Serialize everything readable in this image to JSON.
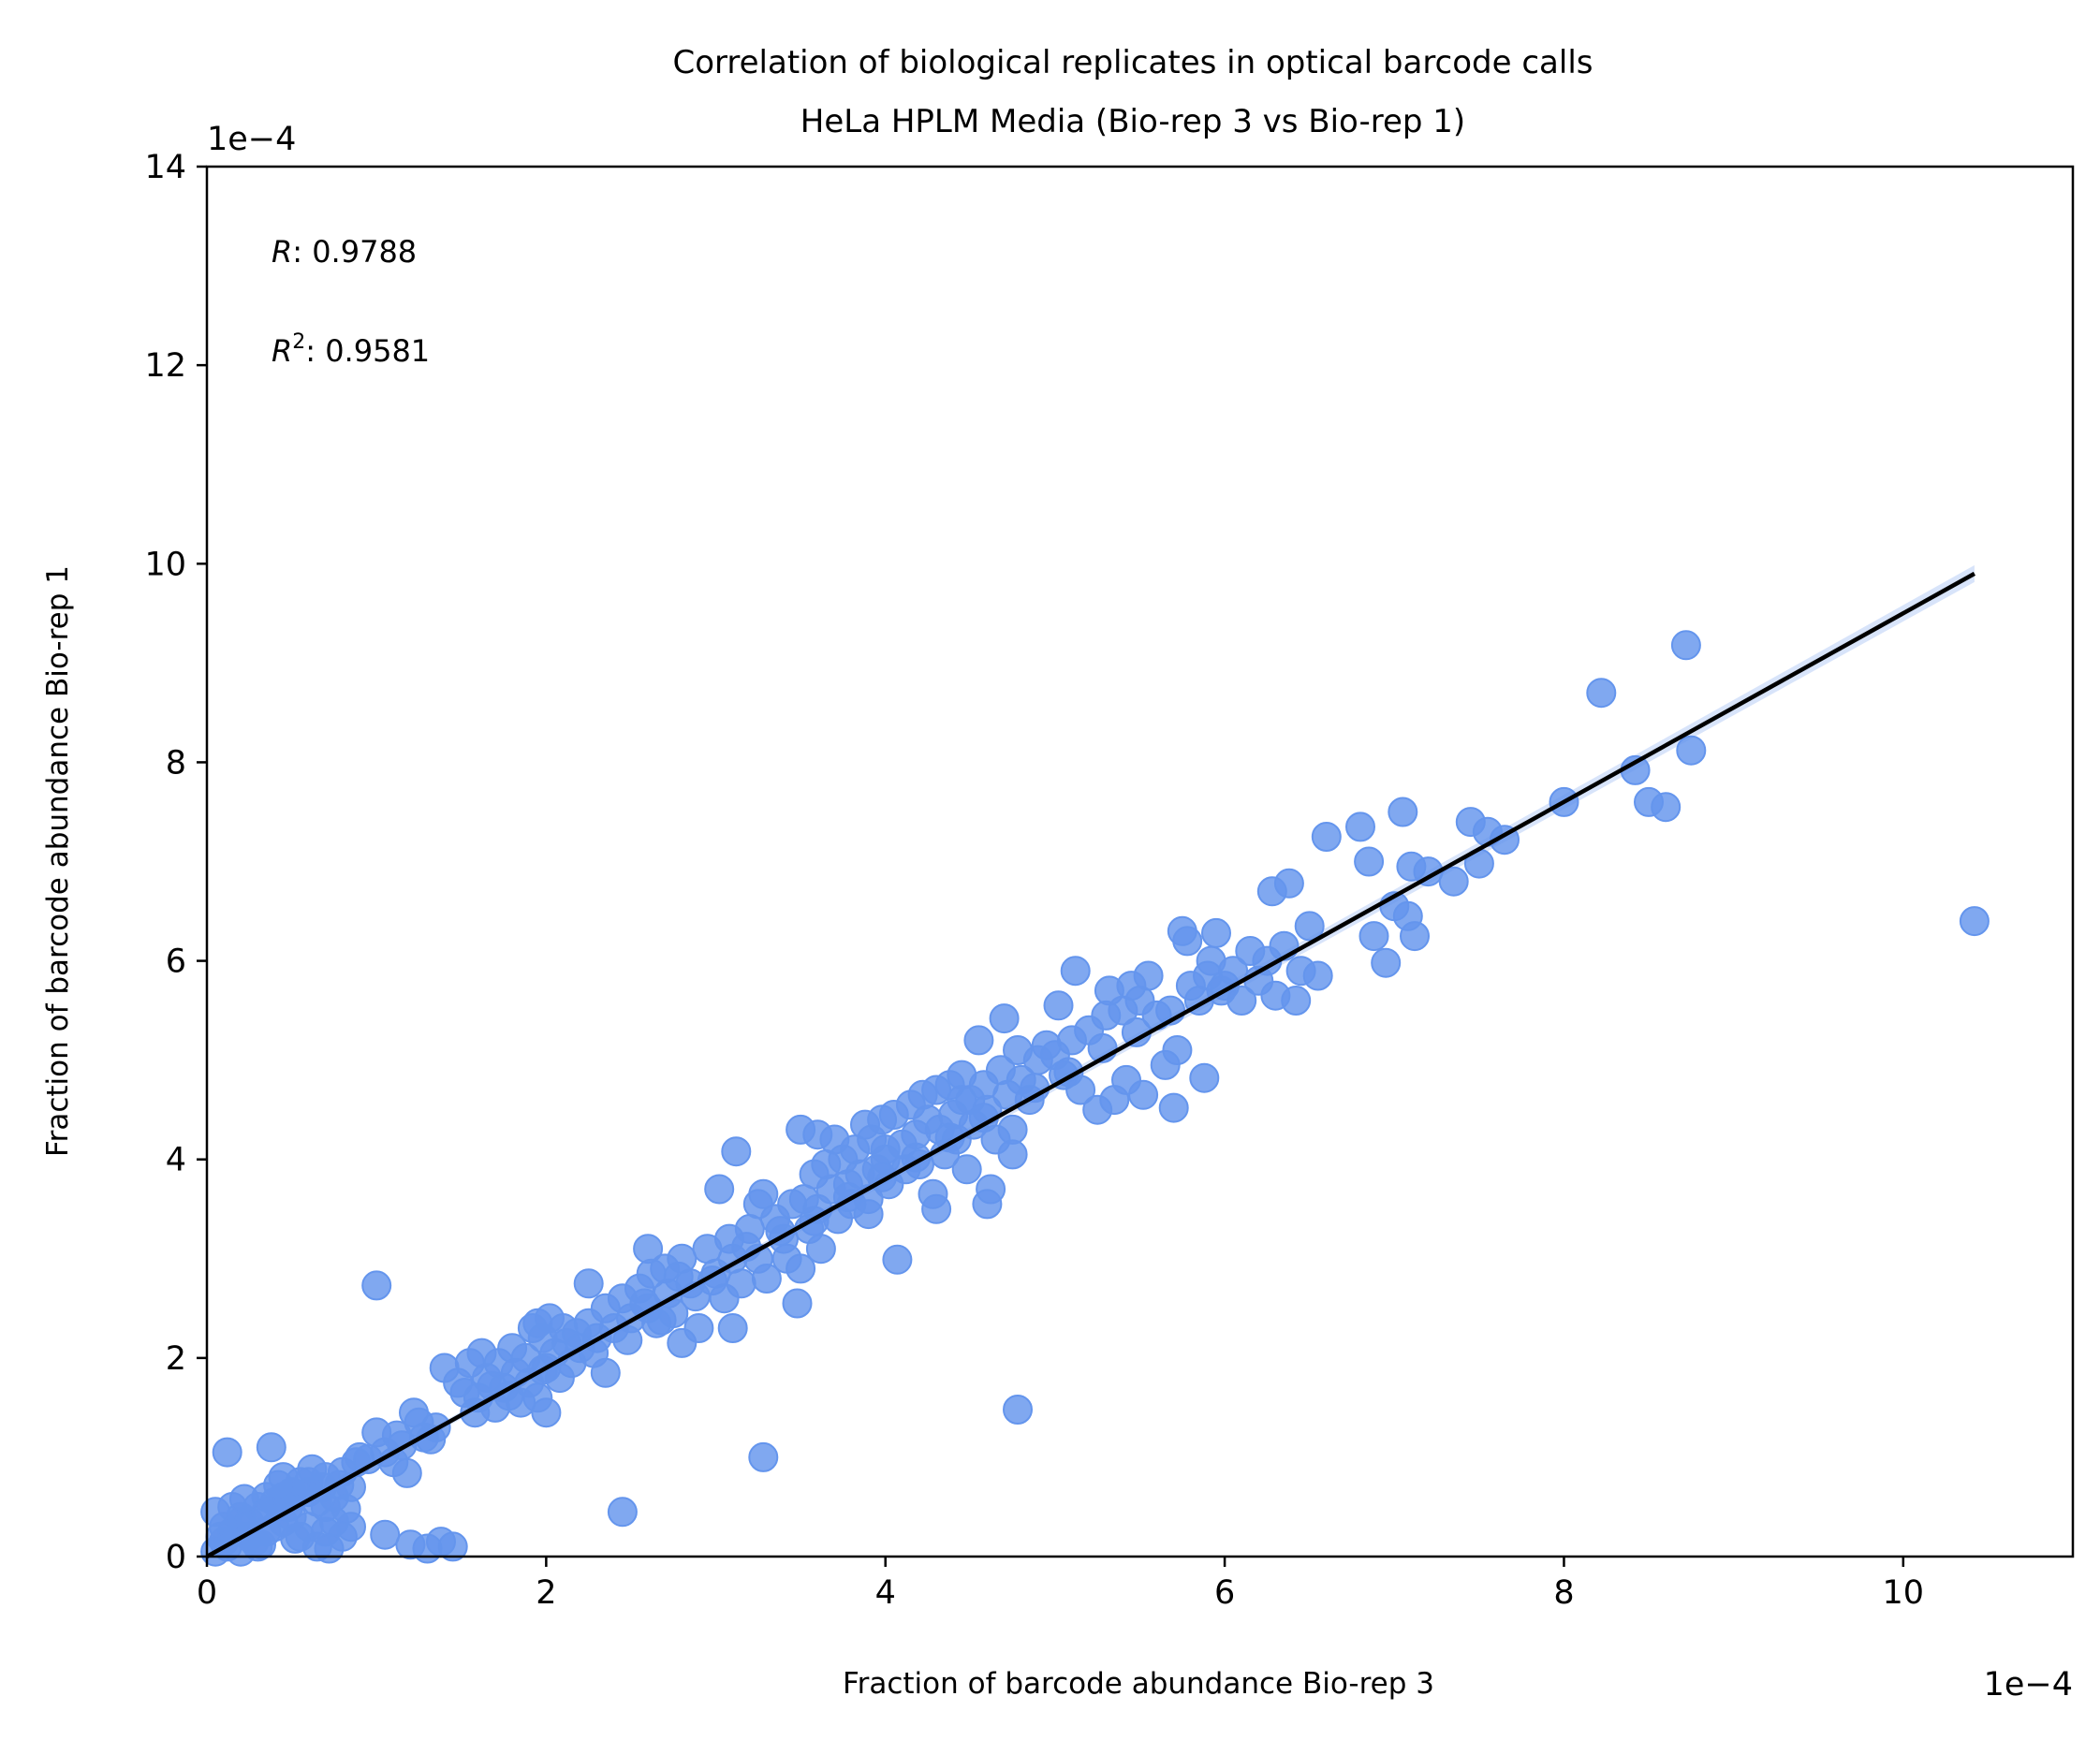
{
  "chart_data": {
    "type": "scatter",
    "title": "Correlation of biological replicates in optical barcode calls",
    "subtitle": "HeLa HPLM Media (Bio-rep 3 vs Bio-rep 1)",
    "xlabel": "Fraction of barcode abundance Bio-rep 3",
    "ylabel": "Fraction of barcode abundance Bio-rep 1",
    "x_exponent_label": "1e−4",
    "y_exponent_label": "1e−4",
    "xlim": [
      0,
      11
    ],
    "ylim": [
      0,
      14
    ],
    "x_ticks": [
      0,
      2,
      4,
      6,
      8,
      10
    ],
    "x_tick_labels": [
      "0",
      "2",
      "4",
      "6",
      "8",
      "10"
    ],
    "y_ticks": [
      0,
      2,
      4,
      6,
      8,
      10,
      12,
      14
    ],
    "y_tick_labels": [
      "0",
      "2",
      "4",
      "6",
      "8",
      "10",
      "12",
      "14"
    ],
    "grid": false,
    "point_color": "#6495ED",
    "line_color": "#000000",
    "annotations": [
      {
        "label": "R",
        "text": ": 0.9788",
        "superscript": ""
      },
      {
        "label": "R",
        "text": ": 0.9581",
        "superscript": "2"
      }
    ],
    "regression_line": {
      "x": [
        0.0,
        10.42
      ],
      "y": [
        0.0,
        9.9
      ]
    },
    "series": [
      {
        "points": [
          [
            0.12,
            1.05
          ],
          [
            0.38,
            1.1
          ],
          [
            1.0,
            2.73
          ],
          [
            1.22,
            1.45
          ],
          [
            1.18,
            0.84
          ],
          [
            1.0,
            1.25
          ],
          [
            0.05,
            0.45
          ],
          [
            0.15,
            0.5
          ],
          [
            0.2,
            0.35
          ],
          [
            0.35,
            0.6
          ],
          [
            0.45,
            0.8
          ],
          [
            0.5,
            0.65
          ],
          [
            0.6,
            0.75
          ],
          [
            0.65,
            0.55
          ],
          [
            0.7,
            0.8
          ],
          [
            0.75,
            0.6
          ],
          [
            0.8,
            0.85
          ],
          [
            0.85,
            0.7
          ],
          [
            0.9,
            1.0
          ],
          [
            0.05,
            0.05
          ],
          [
            0.1,
            0.15
          ],
          [
            0.2,
            0.05
          ],
          [
            0.25,
            0.2
          ],
          [
            0.3,
            0.1
          ],
          [
            0.35,
            0.25
          ],
          [
            0.4,
            0.3
          ],
          [
            0.45,
            0.35
          ],
          [
            0.5,
            0.4
          ],
          [
            0.55,
            0.2
          ],
          [
            0.6,
            0.3
          ],
          [
            0.65,
            0.1
          ],
          [
            0.7,
            0.25
          ],
          [
            0.75,
            0.35
          ],
          [
            0.8,
            0.2
          ],
          [
            0.85,
            0.3
          ],
          [
            0.1,
            0.3
          ],
          [
            0.2,
            0.4
          ],
          [
            0.3,
            0.5
          ],
          [
            0.4,
            0.55
          ],
          [
            0.5,
            0.6
          ],
          [
            0.6,
            0.65
          ],
          [
            0.7,
            0.5
          ],
          [
            0.55,
            0.75
          ],
          [
            0.45,
            0.6
          ],
          [
            0.15,
            0.25
          ],
          [
            0.25,
            0.35
          ],
          [
            0.35,
            0.45
          ],
          [
            0.08,
            0.2
          ],
          [
            0.28,
            0.15
          ],
          [
            0.48,
            0.5
          ],
          [
            0.68,
            0.7
          ],
          [
            0.78,
            0.72
          ],
          [
            0.88,
            0.95
          ],
          [
            0.95,
            0.98
          ],
          [
            1.05,
            1.05
          ],
          [
            1.1,
            0.95
          ],
          [
            1.15,
            1.12
          ],
          [
            1.28,
            1.2
          ],
          [
            1.35,
            1.3
          ],
          [
            1.05,
            0.22
          ],
          [
            1.2,
            0.12
          ],
          [
            1.3,
            0.08
          ],
          [
            1.38,
            0.15
          ],
          [
            1.45,
            0.1
          ],
          [
            1.4,
            1.9
          ],
          [
            1.48,
            1.75
          ],
          [
            1.55,
            1.95
          ],
          [
            1.6,
            1.6
          ],
          [
            1.62,
            2.05
          ],
          [
            1.65,
            1.8
          ],
          [
            1.7,
            1.5
          ],
          [
            1.72,
            1.95
          ],
          [
            1.75,
            1.7
          ],
          [
            1.8,
            2.1
          ],
          [
            1.82,
            1.85
          ],
          [
            1.85,
            1.55
          ],
          [
            1.88,
            2.0
          ],
          [
            1.9,
            1.75
          ],
          [
            1.92,
            2.3
          ],
          [
            1.95,
            1.6
          ],
          [
            1.98,
            2.2
          ],
          [
            2.0,
            1.9
          ],
          [
            2.02,
            2.4
          ],
          [
            2.05,
            2.05
          ],
          [
            2.08,
            1.8
          ],
          [
            2.1,
            2.3
          ],
          [
            2.12,
            2.15
          ],
          [
            2.15,
            1.95
          ],
          [
            2.18,
            2.25
          ],
          [
            2.2,
            2.1
          ],
          [
            2.25,
            2.35
          ],
          [
            2.3,
            2.2
          ],
          [
            2.35,
            2.5
          ],
          [
            2.4,
            2.3
          ],
          [
            2.45,
            2.6
          ],
          [
            2.5,
            2.4
          ],
          [
            2.55,
            2.7
          ],
          [
            2.6,
            2.5
          ],
          [
            2.62,
            2.85
          ],
          [
            2.65,
            2.35
          ],
          [
            2.7,
            2.9
          ],
          [
            2.72,
            2.65
          ],
          [
            2.75,
            2.45
          ],
          [
            2.8,
            3.0
          ],
          [
            2.85,
            2.75
          ],
          [
            2.9,
            2.3
          ],
          [
            2.95,
            3.1
          ],
          [
            3.0,
            2.85
          ],
          [
            3.02,
            3.7
          ],
          [
            3.05,
            2.6
          ],
          [
            3.08,
            3.2
          ],
          [
            3.1,
            3.0
          ],
          [
            3.12,
            4.08
          ],
          [
            3.15,
            2.75
          ],
          [
            3.2,
            3.3
          ],
          [
            3.25,
            3.0
          ],
          [
            3.28,
            3.65
          ],
          [
            3.3,
            2.8
          ],
          [
            3.35,
            3.4
          ],
          [
            3.4,
            3.2
          ],
          [
            3.42,
            3.0
          ],
          [
            3.45,
            3.55
          ],
          [
            3.48,
            2.55
          ],
          [
            3.5,
            4.3
          ],
          [
            3.52,
            3.6
          ],
          [
            3.55,
            3.3
          ],
          [
            3.58,
            3.85
          ],
          [
            3.6,
            3.5
          ],
          [
            3.62,
            3.1
          ],
          [
            3.65,
            3.95
          ],
          [
            3.68,
            3.7
          ],
          [
            3.7,
            4.2
          ],
          [
            3.72,
            3.4
          ],
          [
            3.75,
            4.0
          ],
          [
            3.78,
            3.75
          ],
          [
            3.8,
            3.55
          ],
          [
            3.82,
            4.1
          ],
          [
            3.85,
            3.85
          ],
          [
            3.88,
            4.35
          ],
          [
            3.9,
            3.6
          ],
          [
            3.92,
            4.2
          ],
          [
            3.95,
            3.9
          ],
          [
            3.98,
            4.4
          ],
          [
            4.0,
            4.0
          ],
          [
            4.02,
            3.75
          ],
          [
            4.05,
            4.45
          ],
          [
            4.07,
            2.99
          ],
          [
            4.1,
            4.15
          ],
          [
            4.12,
            3.9
          ],
          [
            4.15,
            4.55
          ],
          [
            4.18,
            4.25
          ],
          [
            4.2,
            3.95
          ],
          [
            4.22,
            4.65
          ],
          [
            4.25,
            4.4
          ],
          [
            4.28,
            3.65
          ],
          [
            4.3,
            4.7
          ],
          [
            4.32,
            4.3
          ],
          [
            4.35,
            4.05
          ],
          [
            4.38,
            4.75
          ],
          [
            4.4,
            4.45
          ],
          [
            4.42,
            4.2
          ],
          [
            4.45,
            4.85
          ],
          [
            4.48,
            3.9
          ],
          [
            4.5,
            4.6
          ],
          [
            4.52,
            4.35
          ],
          [
            4.55,
            5.2
          ],
          [
            4.58,
            4.75
          ],
          [
            4.6,
            4.5
          ],
          [
            4.62,
            3.7
          ],
          [
            4.65,
            4.2
          ],
          [
            4.68,
            4.9
          ],
          [
            4.7,
            5.42
          ],
          [
            4.72,
            4.65
          ],
          [
            4.75,
            4.05
          ],
          [
            4.78,
            5.1
          ],
          [
            4.78,
            1.48
          ],
          [
            4.8,
            4.8
          ],
          [
            4.85,
            4.6
          ],
          [
            4.9,
            5.0
          ],
          [
            4.95,
            5.15
          ],
          [
            5.0,
            5.05
          ],
          [
            5.02,
            5.55
          ],
          [
            5.05,
            4.85
          ],
          [
            5.1,
            5.2
          ],
          [
            5.12,
            5.9
          ],
          [
            5.15,
            4.7
          ],
          [
            5.2,
            5.3
          ],
          [
            5.25,
            4.5
          ],
          [
            5.3,
            5.45
          ],
          [
            5.32,
            5.7
          ],
          [
            5.35,
            4.6
          ],
          [
            5.4,
            5.5
          ],
          [
            5.42,
            4.8
          ],
          [
            5.45,
            5.75
          ],
          [
            5.5,
            5.6
          ],
          [
            5.52,
            4.65
          ],
          [
            5.55,
            5.85
          ],
          [
            5.6,
            5.45
          ],
          [
            5.65,
            4.95
          ],
          [
            5.7,
            4.52
          ],
          [
            5.72,
            5.1
          ],
          [
            5.75,
            6.3
          ],
          [
            5.78,
            6.2
          ],
          [
            5.8,
            5.75
          ],
          [
            5.85,
            5.6
          ],
          [
            5.88,
            4.82
          ],
          [
            5.9,
            5.85
          ],
          [
            5.92,
            6.0
          ],
          [
            5.95,
            6.28
          ],
          [
            6.0,
            5.75
          ],
          [
            6.05,
            5.9
          ],
          [
            6.1,
            5.6
          ],
          [
            6.15,
            6.1
          ],
          [
            6.2,
            5.8
          ],
          [
            6.25,
            6.0
          ],
          [
            6.28,
            6.7
          ],
          [
            6.3,
            5.65
          ],
          [
            6.35,
            6.15
          ],
          [
            6.38,
            6.78
          ],
          [
            6.42,
            5.6
          ],
          [
            6.45,
            5.9
          ],
          [
            6.5,
            6.35
          ],
          [
            6.55,
            5.85
          ],
          [
            6.6,
            7.25
          ],
          [
            6.8,
            7.35
          ],
          [
            6.85,
            7.0
          ],
          [
            6.88,
            6.25
          ],
          [
            6.95,
            5.98
          ],
          [
            7.0,
            6.55
          ],
          [
            7.05,
            7.5
          ],
          [
            7.08,
            6.45
          ],
          [
            7.1,
            6.95
          ],
          [
            7.12,
            6.25
          ],
          [
            7.2,
            6.9
          ],
          [
            7.35,
            6.8
          ],
          [
            7.45,
            7.4
          ],
          [
            7.5,
            6.98
          ],
          [
            7.55,
            7.3
          ],
          [
            7.65,
            7.22
          ],
          [
            8.0,
            7.6
          ],
          [
            8.22,
            8.7
          ],
          [
            8.42,
            7.92
          ],
          [
            8.5,
            7.6
          ],
          [
            8.6,
            7.55
          ],
          [
            8.72,
            9.18
          ],
          [
            8.75,
            8.12
          ],
          [
            10.42,
            6.4
          ],
          [
            2.45,
            0.45
          ],
          [
            3.28,
            1.0
          ],
          [
            2.35,
            1.85
          ],
          [
            2.0,
            1.45
          ],
          [
            1.95,
            2.35
          ],
          [
            2.25,
            2.75
          ],
          [
            2.6,
            3.1
          ],
          [
            2.8,
            2.15
          ],
          [
            3.1,
            2.3
          ],
          [
            3.25,
            3.55
          ],
          [
            3.5,
            2.9
          ],
          [
            3.6,
            4.25
          ],
          [
            3.9,
            3.45
          ],
          [
            4.0,
            4.1
          ],
          [
            4.3,
            3.5
          ],
          [
            4.45,
            4.6
          ],
          [
            4.6,
            3.55
          ],
          [
            4.75,
            4.3
          ],
          [
            0.22,
            0.58
          ],
          [
            0.42,
            0.72
          ],
          [
            0.62,
            0.88
          ],
          [
            0.82,
            0.48
          ],
          [
            0.32,
            0.12
          ],
          [
            0.52,
            0.18
          ],
          [
            0.72,
            0.08
          ],
          [
            0.12,
            0.1
          ],
          [
            1.12,
            1.22
          ],
          [
            1.25,
            1.35
          ],
          [
            1.32,
            1.18
          ],
          [
            1.52,
            1.65
          ],
          [
            1.58,
            1.45
          ],
          [
            1.68,
            1.72
          ],
          [
            1.78,
            1.62
          ],
          [
            1.98,
            1.88
          ],
          [
            2.28,
            2.05
          ],
          [
            2.48,
            2.18
          ],
          [
            2.58,
            2.55
          ],
          [
            2.68,
            2.38
          ],
          [
            2.78,
            2.82
          ],
          [
            2.88,
            2.62
          ],
          [
            2.98,
            2.78
          ],
          [
            3.18,
            3.12
          ],
          [
            3.38,
            3.28
          ],
          [
            3.58,
            3.38
          ],
          [
            3.78,
            3.62
          ],
          [
            3.98,
            3.82
          ],
          [
            4.18,
            4.02
          ],
          [
            4.38,
            4.22
          ],
          [
            4.58,
            4.42
          ],
          [
            4.88,
            4.72
          ],
          [
            5.08,
            4.88
          ],
          [
            5.28,
            5.12
          ],
          [
            5.48,
            5.28
          ],
          [
            5.68,
            5.5
          ],
          [
            5.98,
            5.7
          ]
        ]
      }
    ]
  }
}
